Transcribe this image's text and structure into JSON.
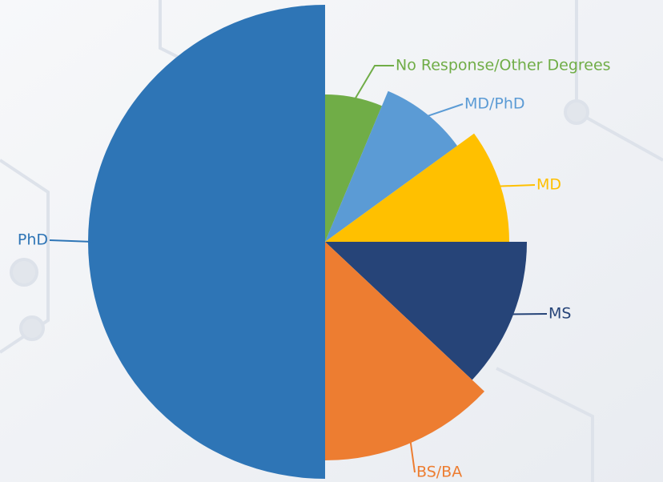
{
  "chart_data": {
    "type": "pie",
    "categories": [
      "No Response/Other Degrees",
      "MD/PhD",
      "MD",
      "MS",
      "BS/BA",
      "PhD"
    ],
    "values": [
      6.3,
      8.7,
      10,
      12,
      13,
      50
    ],
    "colors": [
      "#70ad47",
      "#5b9bd5",
      "#ffc000",
      "#264478",
      "#ed7d31",
      "#2e75b6"
    ]
  }
}
